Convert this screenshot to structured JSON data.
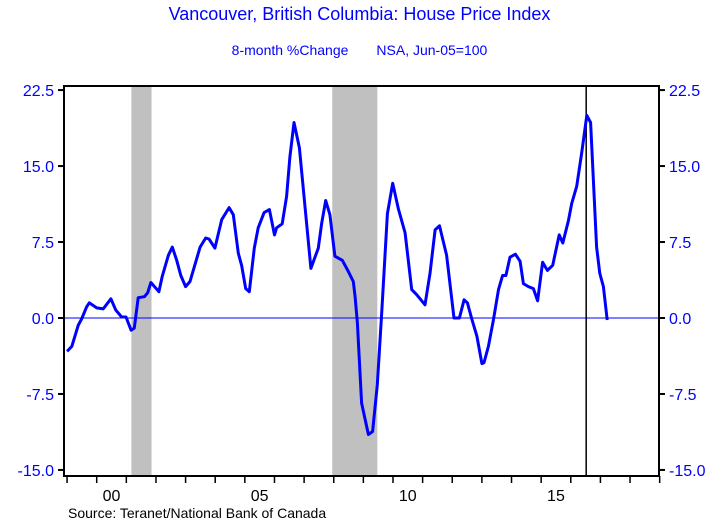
{
  "chart_data": {
    "type": "line",
    "title": "Vancouver, British Columbia: House Price Index",
    "subtitle_left": "8-month %Change",
    "subtitle_right": "NSA, Jun-05=100",
    "source": "Source:  Teranet/National Bank of Canada",
    "xlabel": "",
    "ylabel": "",
    "xlim": [
      1998.9,
      2019.0
    ],
    "ylim": [
      -15.0,
      22.5
    ],
    "y_ticks": [
      "22.5",
      "15.0",
      "7.5",
      "0.0",
      "-7.5",
      "-15.0"
    ],
    "y_tick_values": [
      22.5,
      15.0,
      7.5,
      0.0,
      -7.5,
      -15.0
    ],
    "x_tick_labels": [
      {
        "label": "00",
        "year": 2000
      },
      {
        "label": "05",
        "year": 2005
      },
      {
        "label": "10",
        "year": 2010
      },
      {
        "label": "15",
        "year": 2015
      }
    ],
    "recession_bands": [
      [
        2001.17,
        2001.85
      ],
      [
        2007.95,
        2009.47
      ]
    ],
    "vertical_marker": 2016.52,
    "zero_line": true,
    "colors": {
      "line": "#0000ff",
      "text": "#0000ff",
      "band": "#c0c0c0"
    },
    "series": [
      {
        "x": [
          1999.0,
          1999.16,
          1999.38,
          1999.49,
          1999.66,
          1999.75,
          2000.0,
          2000.22,
          2000.48,
          2000.64,
          2000.84,
          2000.99,
          2001.16,
          2001.27,
          2001.4,
          2001.61,
          2001.72,
          2001.83,
          2002.1,
          2002.21,
          2002.42,
          2002.55,
          2002.7,
          2002.84,
          2003.0,
          2003.15,
          2003.49,
          2003.68,
          2003.79,
          2003.99,
          2004.22,
          2004.47,
          2004.61,
          2004.78,
          2004.89,
          2005.03,
          2005.15,
          2005.32,
          2005.45,
          2005.65,
          2005.83,
          2006.0,
          2006.07,
          2006.26,
          2006.41,
          2006.52,
          2006.66,
          2006.84,
          2007.03,
          2007.23,
          2007.48,
          2007.59,
          2007.73,
          2007.87,
          2008.04,
          2008.29,
          2008.49,
          2008.66,
          2008.72,
          2008.8,
          2008.94,
          2009.17,
          2009.31,
          2009.47,
          2009.62,
          2009.81,
          2009.99,
          2010.18,
          2010.41,
          2010.63,
          2010.8,
          2011.08,
          2011.25,
          2011.42,
          2011.57,
          2011.81,
          2012.06,
          2012.24,
          2012.4,
          2012.51,
          2012.66,
          2012.83,
          2013.0,
          2013.07,
          2013.22,
          2013.39,
          2013.56,
          2013.7,
          2013.81,
          2013.95,
          2014.13,
          2014.29,
          2014.4,
          2014.57,
          2014.74,
          2014.88,
          2015.05,
          2015.21,
          2015.39,
          2015.61,
          2015.73,
          2015.92,
          2016.03,
          2016.2,
          2016.37,
          2016.54,
          2016.67,
          2016.87,
          2016.98,
          2017.1,
          2017.23
        ],
        "y": [
          -3.3,
          -2.8,
          -0.7,
          -0.1,
          1.1,
          1.5,
          1.0,
          0.9,
          1.9,
          0.8,
          0.1,
          0.1,
          -1.2,
          -1.0,
          2.0,
          2.1,
          2.5,
          3.5,
          2.6,
          4.1,
          6.2,
          7.0,
          5.7,
          4.2,
          3.1,
          3.6,
          7.0,
          7.9,
          7.8,
          6.9,
          9.7,
          10.9,
          10.2,
          6.4,
          5.2,
          2.9,
          2.6,
          6.9,
          8.9,
          10.4,
          10.7,
          8.2,
          8.9,
          9.3,
          12.0,
          15.9,
          19.3,
          16.8,
          11.0,
          4.9,
          6.9,
          9.3,
          11.6,
          10.2,
          6.1,
          5.7,
          4.6,
          3.6,
          2.1,
          -0.5,
          -8.4,
          -11.5,
          -11.2,
          -6.6,
          0.5,
          10.3,
          13.3,
          10.8,
          8.4,
          2.8,
          2.3,
          1.3,
          4.4,
          8.7,
          9.1,
          6.2,
          0.0,
          0.0,
          1.8,
          1.5,
          -0.1,
          -1.8,
          -4.5,
          -4.4,
          -2.8,
          -0.2,
          2.8,
          4.2,
          4.2,
          6.0,
          6.3,
          5.6,
          3.4,
          3.1,
          2.9,
          1.7,
          5.5,
          4.7,
          5.2,
          8.2,
          7.4,
          9.6,
          11.3,
          13.0,
          16.3,
          20.0,
          19.3,
          7.0,
          4.4,
          3.1,
          -0.2
        ]
      }
    ]
  }
}
